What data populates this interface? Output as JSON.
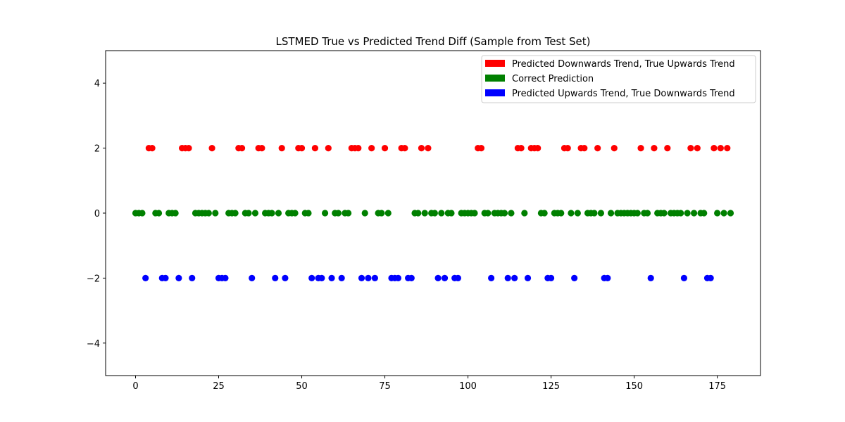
{
  "chart_data": {
    "type": "scatter",
    "title": "LSTMED True vs Predicted Trend Diff (Sample from Test Set)",
    "xlabel": "",
    "ylabel": "",
    "xlim": [
      -9,
      188
    ],
    "ylim": [
      -5,
      5
    ],
    "xticks": [
      0,
      25,
      50,
      75,
      100,
      125,
      150,
      175
    ],
    "yticks": [
      -4,
      -2,
      0,
      2,
      4
    ],
    "xtick_labels": [
      "0",
      "25",
      "50",
      "75",
      "100",
      "125",
      "150",
      "175"
    ],
    "ytick_labels": [
      "−4",
      "−2",
      "0",
      "2",
      "4"
    ],
    "grid": false,
    "legend_position": "top-right",
    "series": [
      {
        "name": "Predicted Downwards Trend, True Upwards Trend",
        "color": "#ff0000",
        "y": 2,
        "x": [
          4,
          5,
          14,
          15,
          16,
          23,
          31,
          32,
          37,
          38,
          44,
          49,
          50,
          54,
          58,
          65,
          66,
          67,
          71,
          75,
          80,
          81,
          86,
          88,
          103,
          104,
          115,
          116,
          119,
          120,
          121,
          129,
          130,
          134,
          135,
          139,
          144,
          152,
          156,
          160,
          167,
          169,
          174,
          176,
          178
        ]
      },
      {
        "name": "Correct Prediction",
        "color": "#008000",
        "y": 0,
        "x": [
          0,
          1,
          2,
          6,
          7,
          10,
          11,
          12,
          18,
          19,
          20,
          21,
          22,
          24,
          28,
          29,
          30,
          33,
          34,
          36,
          39,
          40,
          41,
          43,
          46,
          47,
          48,
          51,
          52,
          57,
          60,
          61,
          63,
          64,
          69,
          73,
          74,
          76,
          84,
          85,
          87,
          89,
          90,
          92,
          94,
          95,
          98,
          99,
          100,
          101,
          102,
          105,
          106,
          108,
          109,
          110,
          111,
          113,
          117,
          122,
          123,
          126,
          127,
          128,
          131,
          133,
          136,
          137,
          138,
          140,
          143,
          145,
          146,
          147,
          148,
          149,
          150,
          151,
          153,
          154,
          157,
          158,
          159,
          161,
          162,
          163,
          164,
          166,
          168,
          170,
          171,
          175,
          177,
          179
        ]
      },
      {
        "name": "Predicted Upwards Trend, True Downwards Trend",
        "color": "#0000ff",
        "y": -2,
        "x": [
          3,
          8,
          9,
          13,
          17,
          25,
          26,
          27,
          35,
          42,
          45,
          53,
          55,
          56,
          59,
          62,
          68,
          70,
          72,
          77,
          78,
          79,
          82,
          83,
          91,
          93,
          96,
          97,
          107,
          112,
          114,
          118,
          124,
          125,
          132,
          141,
          142,
          155,
          165,
          172,
          173
        ]
      }
    ]
  }
}
